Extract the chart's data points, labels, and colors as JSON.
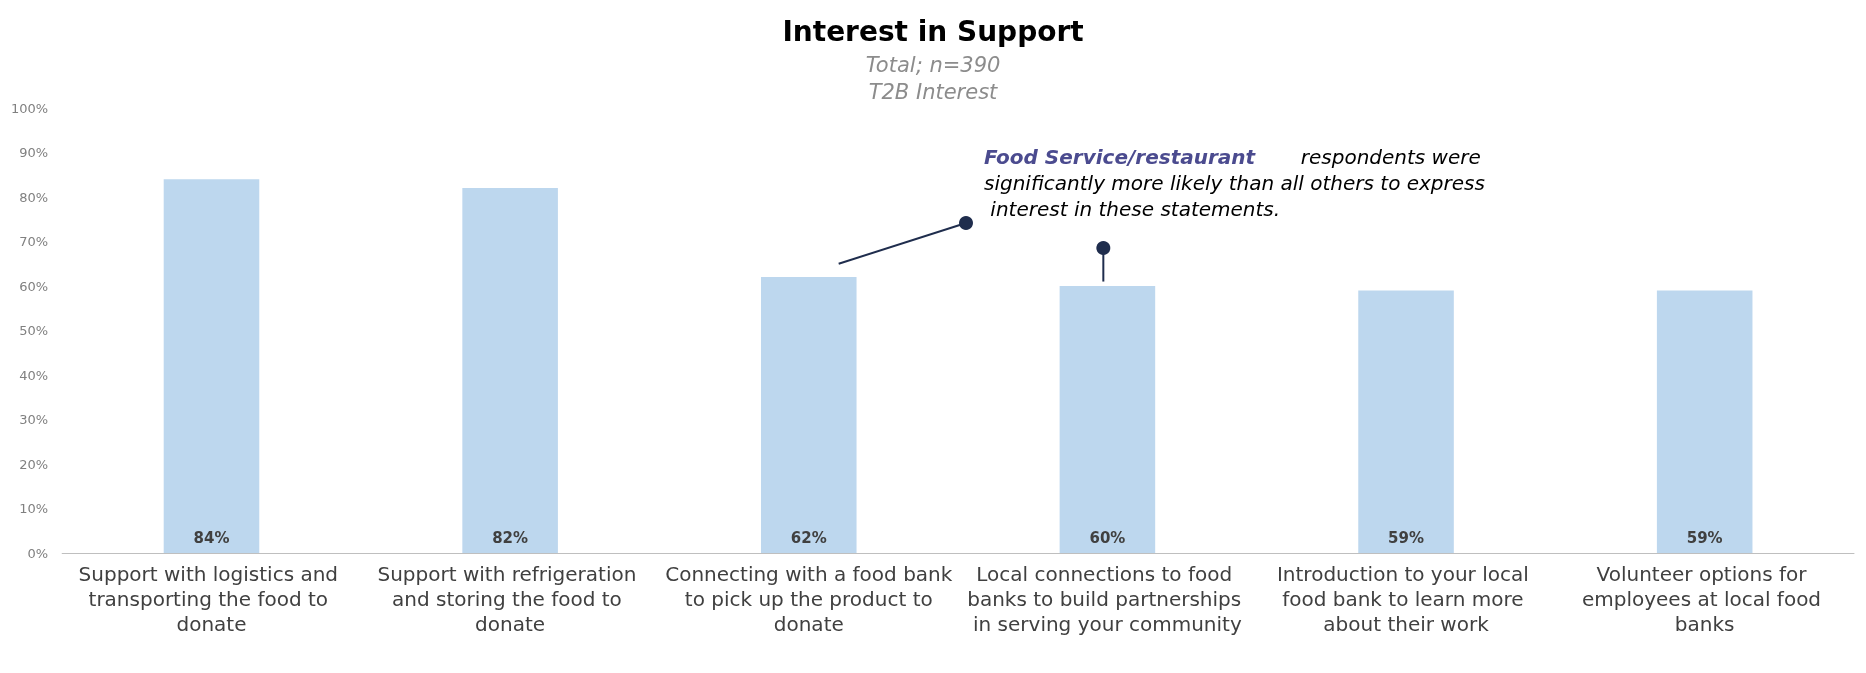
{
  "chart_data": {
    "type": "bar",
    "title": "Interest in Support",
    "subtitle": "Total; n=390\nT2B Interest",
    "categories": [
      "Support with logistics and transporting the food to donate",
      "Support with refrigeration and storing the food to donate",
      "Connecting with a food bank to pick up the product to donate",
      "Local connections to food banks to build partnerships in serving your community",
      "Introduction to your local food bank to learn more about their work",
      "Volunteer options for employees at local food banks"
    ],
    "values": [
      84,
      82,
      62,
      60,
      59,
      59
    ],
    "value_labels": [
      "84%",
      "82%",
      "62%",
      "60%",
      "59%",
      "59%"
    ],
    "color": "#bdd7ee",
    "ylim": [
      0,
      100
    ],
    "yticks": [
      {
        "value": 0,
        "label": "0%"
      },
      {
        "value": 10,
        "label": "10%"
      },
      {
        "value": 20,
        "label": "20%"
      },
      {
        "value": 30,
        "label": "30%"
      },
      {
        "value": 40,
        "label": "40%"
      },
      {
        "value": 50,
        "label": "50%"
      },
      {
        "value": 60,
        "label": "60%"
      },
      {
        "value": 70,
        "label": "70%"
      },
      {
        "value": 80,
        "label": "80%"
      },
      {
        "value": 90,
        "label": "90%"
      },
      {
        "value": 100,
        "label": "100%"
      }
    ],
    "annotations": [
      "Food Service/restaurant",
      "respondents were significantly more likely than all others to express interest in these statements."
    ]
  }
}
